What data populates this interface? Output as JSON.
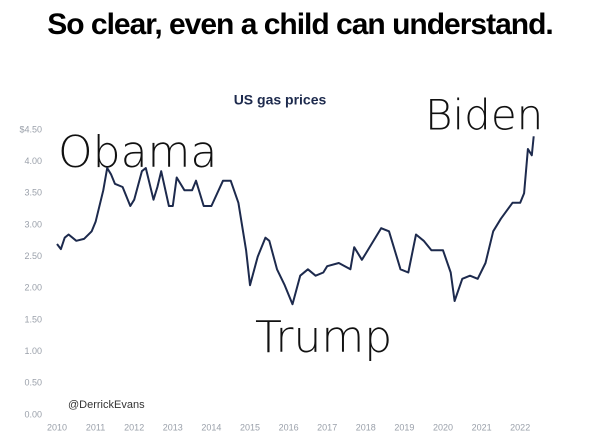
{
  "chart_data": {
    "type": "line",
    "heading": "So clear, even a child can understand.",
    "title": "US gas prices",
    "annotations": [
      "Obama",
      "Biden",
      "Trump"
    ],
    "credit": "@DerrickEvans",
    "color": "#1d2a4d",
    "x": [
      2010.0,
      2010.1,
      2010.2,
      2010.3,
      2010.5,
      2010.7,
      2010.9,
      2011.0,
      2011.2,
      2011.3,
      2011.4,
      2011.5,
      2011.7,
      2011.9,
      2012.0,
      2012.2,
      2012.3,
      2012.5,
      2012.6,
      2012.7,
      2012.9,
      2013.0,
      2013.1,
      2013.3,
      2013.5,
      2013.6,
      2013.8,
      2014.0,
      2014.3,
      2014.5,
      2014.7,
      2014.9,
      2015.0,
      2015.2,
      2015.4,
      2015.5,
      2015.7,
      2015.9,
      2016.1,
      2016.3,
      2016.5,
      2016.7,
      2016.9,
      2017.0,
      2017.3,
      2017.6,
      2017.7,
      2017.9,
      2018.0,
      2018.4,
      2018.6,
      2018.9,
      2019.1,
      2019.3,
      2019.5,
      2019.7,
      2019.9,
      2020.0,
      2020.2,
      2020.3,
      2020.5,
      2020.7,
      2020.9,
      2021.1,
      2021.3,
      2021.5,
      2021.8,
      2022.0,
      2022.1,
      2022.2,
      2022.3,
      2022.35
    ],
    "values": [
      2.7,
      2.62,
      2.8,
      2.85,
      2.75,
      2.78,
      2.9,
      3.05,
      3.55,
      3.9,
      3.8,
      3.65,
      3.6,
      3.3,
      3.4,
      3.85,
      3.9,
      3.4,
      3.6,
      3.85,
      3.3,
      3.3,
      3.75,
      3.55,
      3.55,
      3.7,
      3.3,
      3.3,
      3.7,
      3.7,
      3.35,
      2.6,
      2.05,
      2.5,
      2.8,
      2.75,
      2.3,
      2.05,
      1.75,
      2.2,
      2.3,
      2.2,
      2.25,
      2.35,
      2.4,
      2.3,
      2.65,
      2.45,
      2.55,
      2.95,
      2.9,
      2.3,
      2.25,
      2.85,
      2.75,
      2.6,
      2.6,
      2.6,
      2.25,
      1.8,
      2.15,
      2.2,
      2.15,
      2.4,
      2.9,
      3.1,
      3.35,
      3.35,
      3.5,
      4.2,
      4.1,
      4.4
    ],
    "xlim": [
      2010,
      2022.5
    ],
    "xticks": [
      2010,
      2011,
      2012,
      2013,
      2014,
      2015,
      2016,
      2017,
      2018,
      2019,
      2020,
      2021,
      2022
    ],
    "ylim": [
      0,
      4.5
    ],
    "yticks": [
      {
        "value": 0,
        "label": "0.00"
      },
      {
        "value": 0.5,
        "label": "0.50"
      },
      {
        "value": 1,
        "label": "1.00"
      },
      {
        "value": 1.5,
        "label": "1.50"
      },
      {
        "value": 2,
        "label": "2.00"
      },
      {
        "value": 2.5,
        "label": "2.50"
      },
      {
        "value": 3,
        "label": "3.00"
      },
      {
        "value": 3.5,
        "label": "3.50"
      },
      {
        "value": 4,
        "label": "4.00"
      },
      {
        "value": 4.5,
        "label": "$4.50"
      }
    ],
    "grid": false
  }
}
